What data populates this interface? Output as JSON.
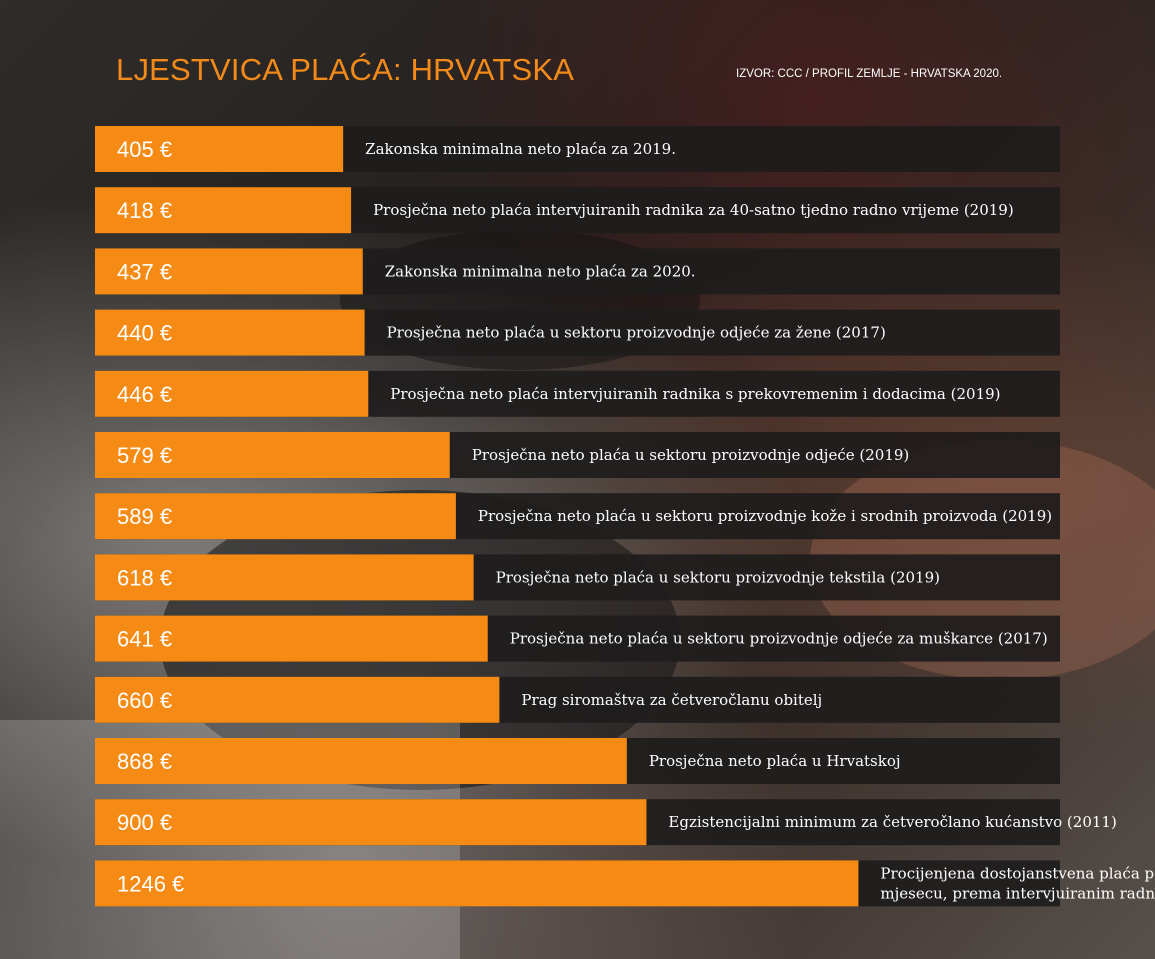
{
  "header": {
    "title": "LJESTVICA PLAĆA: HRVATSKA",
    "source": "IZVOR: CCC / PROFIL ZEMLJE - HRVATSKA 2020."
  },
  "colors": {
    "bar": "#f58b14",
    "row_background": "#1e1c1c",
    "title": "#f28a1a",
    "text": "#ffffff"
  },
  "chart_data": {
    "type": "bar",
    "orientation": "horizontal",
    "title": "LJESTVICA PLAĆA: HRVATSKA",
    "unit": "€",
    "xlim": [
      0,
      1575
    ],
    "values": [
      405,
      418,
      437,
      440,
      446,
      579,
      589,
      618,
      641,
      660,
      868,
      900,
      1246
    ],
    "value_labels": [
      "405 €",
      "418 €",
      "437 €",
      "440 €",
      "446 €",
      "579 €",
      "589 €",
      "618 €",
      "641 €",
      "660 €",
      "868 €",
      "900 €",
      "1246 €"
    ],
    "categories": [
      "Zakonska minimalna neto plaća za 2019.",
      "Prosječna neto plaća intervjuiranih radnika za 40-satno tjedno radno vrijeme (2019)",
      "Zakonska minimalna neto plaća za 2020.",
      "Prosječna neto plaća u sektoru proizvodnje odjeće za žene (2017)",
      "Prosječna neto plaća intervjuiranih radnika s prekovremenim i dodacima (2019)",
      "Prosječna neto plaća u sektoru proizvodnje odjeće (2019)",
      "Prosječna neto plaća u sektoru proizvodnje kože i srodnih proizvoda (2019)",
      "Prosječna neto plaća u sektoru proizvodnje tekstila (2019)",
      "Prosječna neto plaća u sektoru proizvodnje odjeće za muškarce (2017)",
      "Prag siromaštva za četveročlanu obitelj",
      "Prosječna neto plaća u Hrvatskoj",
      "Egzistencijalni minimum za četveročlano kućanstvo (2011)",
      "Procijenjena dostojanstvena plaća po mjesecu, prema intervjuiranim radnicima"
    ],
    "category_lines": [
      [
        "Zakonska minimalna neto plaća za 2019."
      ],
      [
        "Prosječna neto plaća intervjuiranih radnika za 40-satno tjedno radno vrijeme (2019)"
      ],
      [
        "Zakonska minimalna neto plaća za 2020."
      ],
      [
        "Prosječna neto plaća u sektoru proizvodnje odjeće za žene (2017)"
      ],
      [
        "Prosječna neto plaća intervjuiranih radnika s prekovremenim i dodacima (2019)"
      ],
      [
        "Prosječna neto plaća u sektoru proizvodnje odjeće (2019)"
      ],
      [
        "Prosječna neto plaća u sektoru proizvodnje kože i srodnih proizvoda (2019)"
      ],
      [
        "Prosječna neto plaća u sektoru proizvodnje tekstila (2019)"
      ],
      [
        "Prosječna neto plaća u sektoru proizvodnje odjeće za muškarce (2017)"
      ],
      [
        "Prag siromaštva za četveročlanu obitelj"
      ],
      [
        "Prosječna neto plaća u Hrvatskoj"
      ],
      [
        "Egzistencijalni minimum za četveročlano kućanstvo (2011)"
      ],
      [
        "Procijenjena dostojanstvena plaća po",
        "mjesecu, prema intervjuiranim radnicima"
      ]
    ],
    "grid": false,
    "legend": "none"
  }
}
